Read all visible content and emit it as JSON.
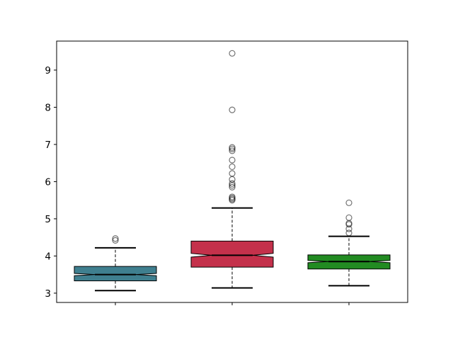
{
  "chart_data": {
    "type": "boxplot",
    "notched": true,
    "title": "",
    "xlabel": "",
    "ylabel": "",
    "ylim": [
      2.75,
      9.78
    ],
    "yticks": [
      3,
      4,
      5,
      6,
      7,
      8,
      9
    ],
    "categories": [
      "",
      "",
      ""
    ],
    "boxes": [
      {
        "color": "#3f7f8f",
        "whisker_low": 3.07,
        "q1": 3.33,
        "median": 3.5,
        "q3": 3.72,
        "whisker_high": 4.22,
        "notch_low": 3.47,
        "notch_high": 3.53,
        "outliers": [
          4.42,
          4.47
        ]
      },
      {
        "color": "#c4314b",
        "whisker_low": 3.14,
        "q1": 3.7,
        "median": 4.02,
        "q3": 4.4,
        "whisker_high": 5.29,
        "notch_low": 3.97,
        "notch_high": 4.07,
        "outliers": [
          5.5,
          5.53,
          5.56,
          5.59,
          5.85,
          5.9,
          5.95,
          6.06,
          6.22,
          6.4,
          6.58,
          6.83,
          6.88,
          6.92,
          7.93,
          9.45
        ]
      },
      {
        "color": "#228b22",
        "whisker_low": 3.2,
        "q1": 3.65,
        "median": 3.85,
        "q3": 4.03,
        "whisker_high": 4.53,
        "notch_low": 3.82,
        "notch_high": 3.88,
        "outliers": [
          4.62,
          4.73,
          4.85,
          4.88,
          5.03,
          5.43
        ]
      }
    ]
  }
}
